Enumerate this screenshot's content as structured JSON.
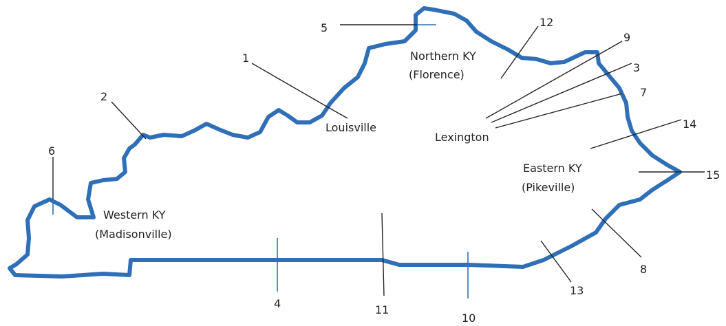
{
  "map": {
    "outline_color": "#2f6fb8",
    "region_labels": [
      {
        "id": "northern",
        "line1": "Northern KY",
        "line2": "(Florence)"
      },
      {
        "id": "western",
        "line1": "Western KY",
        "line2": "(Madisonville)"
      },
      {
        "id": "eastern",
        "line1": "Eastern KY",
        "line2": "(Pikeville)"
      },
      {
        "id": "louisville",
        "line1": "Louisville"
      },
      {
        "id": "lexington",
        "line1": "Lexington"
      }
    ],
    "callouts": [
      "1",
      "2",
      "3",
      "4",
      "5",
      "6",
      "7",
      "8",
      "9",
      "10",
      "11",
      "12",
      "13",
      "14",
      "15"
    ]
  }
}
